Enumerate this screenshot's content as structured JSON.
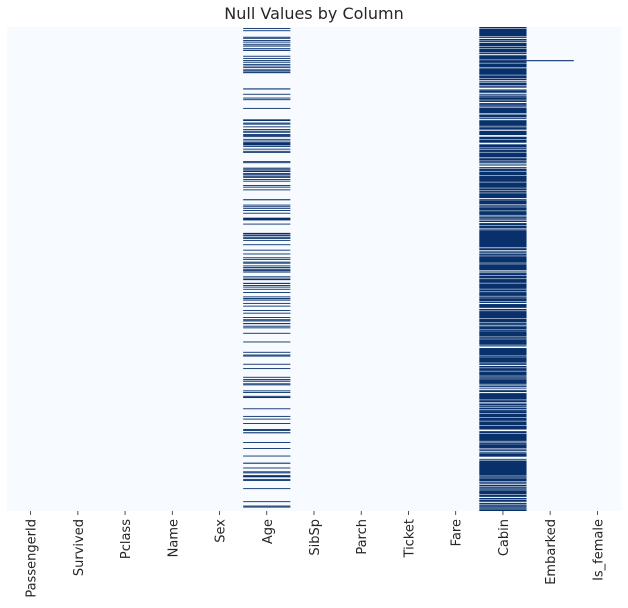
{
  "chart_data": {
    "type": "heatmap",
    "title": "Null Values by Column",
    "xlabel": "",
    "ylabel": "",
    "n_rows": 891,
    "colors": {
      "non_null": "#f7fbff",
      "null": "#08306b"
    },
    "columns": [
      "PassengerId",
      "Survived",
      "Pclass",
      "Name",
      "Sex",
      "Age",
      "SibSp",
      "Parch",
      "Ticket",
      "Fare",
      "Cabin",
      "Embarked",
      "Is_female"
    ],
    "null_counts": [
      0,
      0,
      0,
      0,
      0,
      177,
      0,
      0,
      0,
      0,
      687,
      2,
      0
    ],
    "null_rows": {
      "Embarked": [
        61,
        62
      ]
    },
    "colorbar": "none",
    "grid": false
  }
}
